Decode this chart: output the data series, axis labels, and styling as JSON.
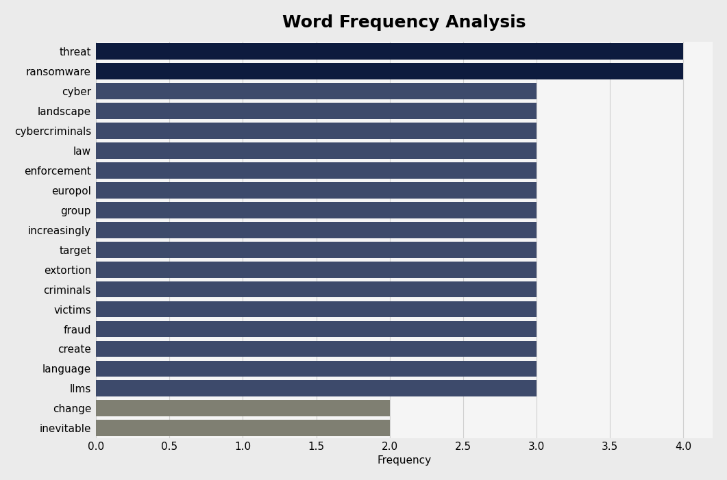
{
  "title": "Word Frequency Analysis",
  "xlabel": "Frequency",
  "categories": [
    "inevitable",
    "change",
    "llms",
    "language",
    "create",
    "fraud",
    "victims",
    "criminals",
    "extortion",
    "target",
    "increasingly",
    "group",
    "europol",
    "enforcement",
    "law",
    "cybercriminals",
    "landscape",
    "cyber",
    "ransomware",
    "threat"
  ],
  "values": [
    2,
    2,
    3,
    3,
    3,
    3,
    3,
    3,
    3,
    3,
    3,
    3,
    3,
    3,
    3,
    3,
    3,
    3,
    4,
    4
  ],
  "bar_colors": [
    "#7f7f72",
    "#7f7f72",
    "#3d4a6b",
    "#3d4a6b",
    "#3d4a6b",
    "#3d4a6b",
    "#3d4a6b",
    "#3d4a6b",
    "#3d4a6b",
    "#3d4a6b",
    "#3d4a6b",
    "#3d4a6b",
    "#3d4a6b",
    "#3d4a6b",
    "#3d4a6b",
    "#3d4a6b",
    "#3d4a6b",
    "#3d4a6b",
    "#0d1b3e",
    "#0d1b3e"
  ],
  "xlim": [
    0,
    4.2
  ],
  "xticks": [
    0.0,
    0.5,
    1.0,
    1.5,
    2.0,
    2.5,
    3.0,
    3.5,
    4.0
  ],
  "background_color": "#ebebeb",
  "bar_area_color": "#f5f5f5",
  "title_fontsize": 18,
  "label_fontsize": 11,
  "tick_fontsize": 11,
  "bar_height": 0.82
}
